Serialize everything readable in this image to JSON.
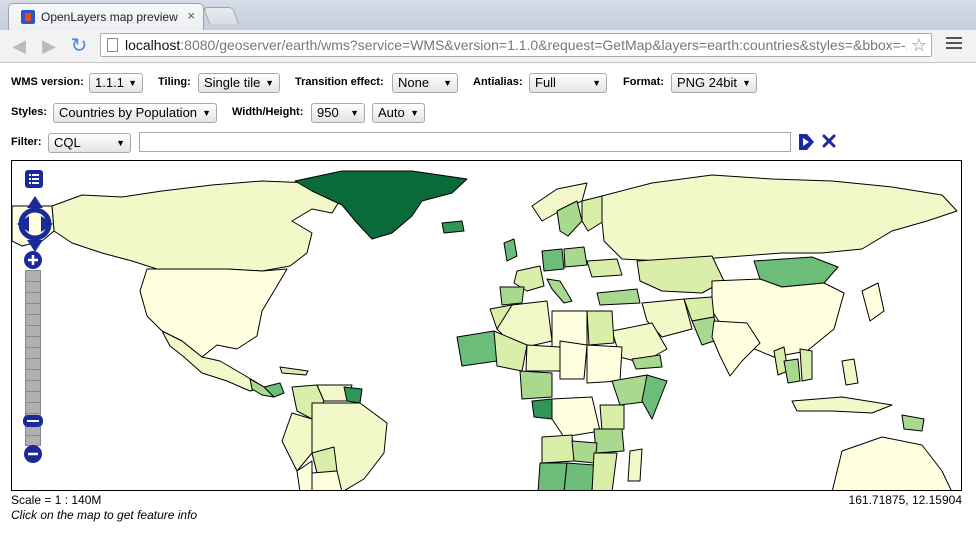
{
  "browser": {
    "tab_title": "OpenLayers map preview",
    "tab_close": "×",
    "url_host": "localhost",
    "url_rest": ":8080/geoserver/earth/wms?service=WMS&version=1.1.0&request=GetMap&layers=earth:countries&styles=&bbox=-179.99"
  },
  "controls": {
    "wms_version": {
      "label": "WMS version:",
      "value": "1.1.1"
    },
    "tiling": {
      "label": "Tiling:",
      "value": "Single tile"
    },
    "transition": {
      "label": "Transition effect:",
      "value": "None"
    },
    "antialias": {
      "label": "Antialias:",
      "value": "Full"
    },
    "format": {
      "label": "Format:",
      "value": "PNG 24bit"
    },
    "styles": {
      "label": "Styles:",
      "value": "Countries by Population"
    },
    "size": {
      "label": "Width/Height:",
      "width": "950",
      "height": "Auto"
    },
    "filter": {
      "label": "Filter:",
      "type": "CQL",
      "value": ""
    }
  },
  "map": {
    "scale": "Scale = 1 : 140M",
    "coords": "161.71875, 12.15904",
    "hint": "Click on the map to get feature info",
    "colors": {
      "ocean": "#ffffff",
      "level1": "#ffffe0",
      "level2": "#f2f8c8",
      "level3": "#d9efa9",
      "level4": "#a8d98f",
      "level5": "#6cbd79",
      "level6": "#2f9657",
      "level7": "#0a6a3a",
      "border": "#000000",
      "nav": "#1a2a9a"
    }
  }
}
